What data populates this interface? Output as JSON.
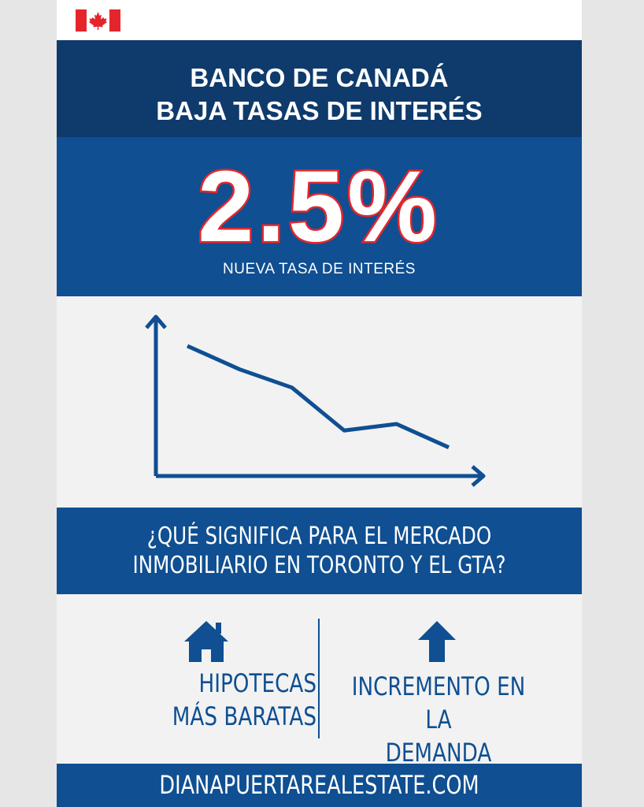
{
  "header": {
    "flag_icon": "canada-flag-icon",
    "colors": {
      "flag_red": "#e4262c",
      "flag_white": "#ffffff"
    }
  },
  "title": {
    "line1": "BANCO DE CANADÁ",
    "line2": "BAJA TASAS DE INTERÉS",
    "background": "#0f3a6c"
  },
  "rate": {
    "value": "2.5%",
    "label": "NUEVA TASA DE INTERÉS",
    "text_color": "#ffffff",
    "outline_color": "#e4262c"
  },
  "chart_data": {
    "type": "line",
    "description_free": true,
    "trend": "decreasing",
    "x": [
      0,
      1,
      2,
      3,
      4,
      5
    ],
    "values": [
      100,
      82,
      68,
      35,
      40,
      22
    ],
    "ylim": [
      0,
      120
    ],
    "grid": false,
    "color": "#0f4f92"
  },
  "question": {
    "line1": "¿QUÉ SIGNIFICA PARA EL MERCADO",
    "line2": "INMOBILIARIO EN TORONTO Y EL GTA?"
  },
  "benefits": {
    "left": {
      "icon": "house-icon",
      "line1": "HIPOTECAS",
      "line2": "MÁS BARATAS"
    },
    "right": {
      "icon": "up-arrow-icon",
      "line1": "INCREMENTO EN LA",
      "line2": "DEMANDA"
    }
  },
  "footer": {
    "website": "DIANAPUERTAREALESTATE.COM"
  },
  "colors": {
    "primary_blue": "#0f4f92",
    "dark_blue": "#0f3a6c",
    "background": "#f2f2f2"
  }
}
